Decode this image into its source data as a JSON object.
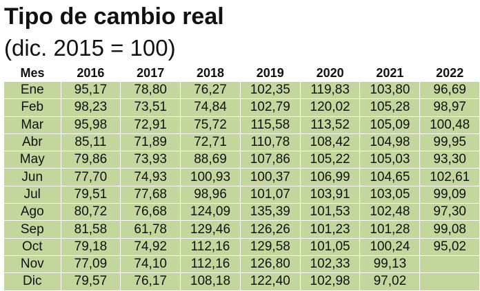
{
  "title": "Tipo de cambio real",
  "subtitle": "(dic. 2015 = 100)",
  "table": {
    "header_month": "Mes",
    "years": [
      "2016",
      "2017",
      "2018",
      "2019",
      "2020",
      "2021",
      "2022"
    ],
    "rows": [
      {
        "mes": "Ene",
        "values": [
          "95,17",
          "78,80",
          "76,27",
          "102,35",
          "119,83",
          "103,80",
          "96,69"
        ]
      },
      {
        "mes": "Feb",
        "values": [
          "98,23",
          "73,51",
          "74,84",
          "102,79",
          "120,02",
          "105,28",
          "98,97"
        ]
      },
      {
        "mes": "Mar",
        "values": [
          "95,98",
          "72,91",
          "75,72",
          "115,58",
          "113,52",
          "105,09",
          "100,48"
        ]
      },
      {
        "mes": "Abr",
        "values": [
          "85,11",
          "71,89",
          "72,71",
          "110,78",
          "108,42",
          "104,98",
          "99,95"
        ]
      },
      {
        "mes": "May",
        "values": [
          "79,86",
          "73,93",
          "88,69",
          "107,86",
          "105,22",
          "105,03",
          "93,30"
        ]
      },
      {
        "mes": "Jun",
        "values": [
          "77,70",
          "74,93",
          "100,93",
          "100,37",
          "106,99",
          "104,65",
          "102,61"
        ]
      },
      {
        "mes": "Jul",
        "values": [
          "79,51",
          "77,68",
          "98,96",
          "101,07",
          "103,91",
          "103,05",
          "99,09"
        ]
      },
      {
        "mes": "Ago",
        "values": [
          "80,72",
          "76,68",
          "124,09",
          "135,39",
          "101,53",
          "102,48",
          "97,30"
        ]
      },
      {
        "mes": "Sep",
        "values": [
          "81,58",
          "61,78",
          "129,46",
          "126,26",
          "101,23",
          "101,28",
          "99,08"
        ]
      },
      {
        "mes": "Oct",
        "values": [
          "79,18",
          "74,92",
          "112,16",
          "129,58",
          "101,05",
          "100,24",
          "95,02"
        ]
      },
      {
        "mes": "Nov",
        "values": [
          "77,09",
          "74,10",
          "112,16",
          "126,80",
          "102,33",
          "99,13",
          ""
        ]
      },
      {
        "mes": "Dic",
        "values": [
          "79,57",
          "76,17",
          "108,18",
          "122,40",
          "102,98",
          "97,02",
          ""
        ]
      }
    ]
  },
  "colors": {
    "cell_bg": "#c3d69b",
    "text": "#111111"
  }
}
